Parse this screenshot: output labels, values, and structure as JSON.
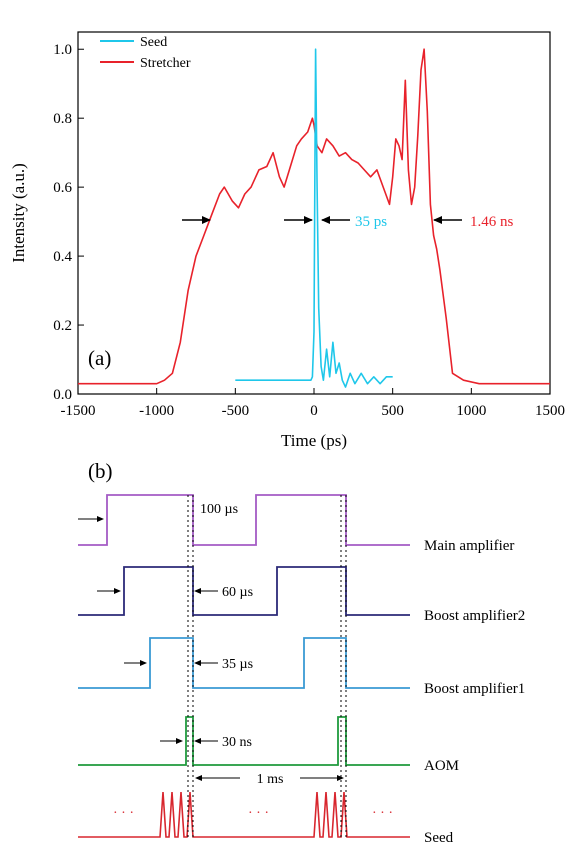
{
  "chart_data": [
    {
      "type": "line",
      "panel_label": "(a)",
      "xlabel": "Time (ps)",
      "ylabel": "Intensity (a.u.)",
      "xlim": [
        -1500,
        1500
      ],
      "ylim": [
        0,
        1.05
      ],
      "xticks": [
        -1500,
        -1000,
        -500,
        0,
        500,
        1000,
        1500
      ],
      "yticks": [
        0.0,
        0.2,
        0.4,
        0.6,
        0.8,
        1.0
      ],
      "xtick_labels": [
        "-1500",
        "-1000",
        "-500",
        "0",
        "500",
        "1000",
        "1500"
      ],
      "ytick_labels": [
        "0.0",
        "0.2",
        "0.4",
        "0.6",
        "0.8",
        "1.0"
      ],
      "grid": false,
      "legend_position": "top-left",
      "series": [
        {
          "name": "Stretcher",
          "color": "#e8222b",
          "x": [
            -1500,
            -1300,
            -1150,
            -1000,
            -950,
            -900,
            -850,
            -800,
            -750,
            -700,
            -650,
            -600,
            -570,
            -520,
            -480,
            -440,
            -400,
            -350,
            -300,
            -260,
            -220,
            -190,
            -150,
            -110,
            -80,
            -40,
            -10,
            0,
            20,
            50,
            80,
            120,
            160,
            200,
            240,
            280,
            320,
            360,
            400,
            440,
            480,
            500,
            520,
            540,
            560,
            580,
            600,
            620,
            640,
            660,
            680,
            700,
            720,
            740,
            760,
            780,
            800,
            840,
            880,
            950,
            1050,
            1200,
            1350,
            1500
          ],
          "y": [
            0.03,
            0.03,
            0.03,
            0.03,
            0.04,
            0.06,
            0.15,
            0.3,
            0.4,
            0.46,
            0.52,
            0.58,
            0.6,
            0.56,
            0.54,
            0.58,
            0.6,
            0.65,
            0.66,
            0.7,
            0.63,
            0.6,
            0.66,
            0.72,
            0.74,
            0.76,
            0.8,
            0.78,
            0.72,
            0.7,
            0.74,
            0.72,
            0.69,
            0.7,
            0.68,
            0.67,
            0.65,
            0.63,
            0.65,
            0.6,
            0.55,
            0.63,
            0.74,
            0.72,
            0.68,
            0.91,
            0.65,
            0.55,
            0.6,
            0.75,
            0.94,
            1.0,
            0.82,
            0.55,
            0.46,
            0.42,
            0.36,
            0.22,
            0.06,
            0.04,
            0.03,
            0.03,
            0.03,
            0.03
          ]
        },
        {
          "name": "Seed",
          "color": "#1fc7ea",
          "x": [
            -500,
            -200,
            -50,
            -20,
            -10,
            0,
            5,
            10,
            20,
            30,
            45,
            60,
            80,
            100,
            120,
            140,
            160,
            180,
            200,
            230,
            260,
            300,
            340,
            380,
            420,
            460,
            500
          ],
          "y": [
            0.04,
            0.04,
            0.04,
            0.04,
            0.05,
            0.18,
            0.6,
            1.0,
            0.6,
            0.25,
            0.08,
            0.04,
            0.13,
            0.05,
            0.15,
            0.06,
            0.09,
            0.04,
            0.02,
            0.06,
            0.03,
            0.06,
            0.03,
            0.05,
            0.03,
            0.05,
            0.05
          ]
        }
      ],
      "annotations": [
        {
          "text": "35 ps",
          "color": "#1fc7ea"
        },
        {
          "text": "1.46 ns",
          "color": "#e8222b"
        }
      ]
    },
    {
      "type": "diagram",
      "panel_label": "(b)",
      "timing_signals": [
        {
          "name": "Main amplifier",
          "color": "#a45bc5",
          "width_label": "100 µs"
        },
        {
          "name": "Boost amplifier2",
          "color": "#2c2a78",
          "width_label": "60 µs"
        },
        {
          "name": "Boost amplifier1",
          "color": "#3a9ad4",
          "width_label": "35 µs"
        },
        {
          "name": "AOM",
          "color": "#1f9a3d",
          "width_label": "30 ns"
        },
        {
          "name": "Seed",
          "color": "#d8262e",
          "width_label": ""
        }
      ],
      "period_label": "1 ms",
      "ellipsis": "· · ·"
    }
  ]
}
